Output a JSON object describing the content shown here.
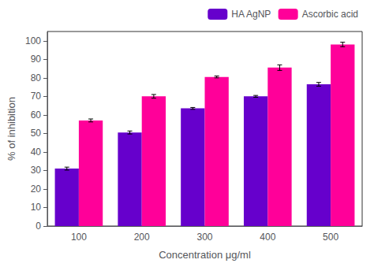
{
  "chart_data": {
    "type": "bar",
    "x_label": "Concentration μg/ml",
    "y_label": "% of inhibition",
    "categories": [
      "100",
      "200",
      "300",
      "400",
      "500"
    ],
    "series": [
      {
        "name": "HA AgNP",
        "color": "#6600CC",
        "values": [
          31,
          50.5,
          63.5,
          70,
          76.5
        ],
        "errors": [
          0.8,
          0.8,
          0.5,
          0.5,
          1.0
        ]
      },
      {
        "name": "Ascorbic acid",
        "color": "#FF0099",
        "values": [
          57,
          70,
          80.5,
          85.5,
          98
        ],
        "errors": [
          0.8,
          1.0,
          0.5,
          1.5,
          1.2
        ]
      }
    ],
    "ylim": [
      0,
      105
    ],
    "yticks": [
      0,
      10,
      20,
      30,
      40,
      50,
      60,
      70,
      80,
      90,
      100
    ],
    "grid": false,
    "legend": "upper right"
  }
}
